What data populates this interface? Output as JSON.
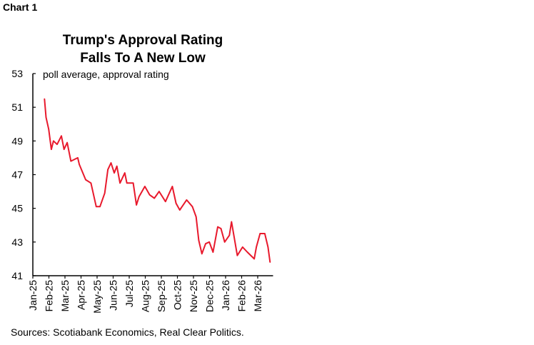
{
  "chart_data": {
    "type": "line",
    "label": "Chart 1",
    "title": [
      "Trump's Approval Rating",
      "Falls To A New Low"
    ],
    "subtitle": "poll average, approval rating",
    "source": "Sources: Scotiabank Economics,  Real Clear Politics.",
    "ylim": [
      41,
      53
    ],
    "yticks": [
      41,
      43,
      45,
      47,
      49,
      51,
      53
    ],
    "xticks": [
      "Jan-25",
      "Feb-25",
      "Mar-25",
      "Apr-25",
      "May-25",
      "Jun-25",
      "Jul-25",
      "Aug-25",
      "Sep-25",
      "Oct-25",
      "Nov-25",
      "Dec-25",
      "Jan-26",
      "Feb-26",
      "Mar-26"
    ],
    "grid": false,
    "line_color": "#e8192c",
    "series": [
      {
        "x": [
          "2025-01-23",
          "2025-01-26",
          "2025-01-31",
          "2025-02-05",
          "2025-02-09",
          "2025-02-16",
          "2025-02-24",
          "2025-03-01",
          "2025-03-07",
          "2025-03-14",
          "2025-03-27",
          "2025-03-30",
          "2025-04-11",
          "2025-04-21",
          "2025-05-01",
          "2025-05-08",
          "2025-05-17",
          "2025-05-23",
          "2025-05-29",
          "2025-06-04",
          "2025-06-09",
          "2025-06-15",
          "2025-06-24",
          "2025-06-28",
          "2025-07-10",
          "2025-07-16",
          "2025-07-21",
          "2025-08-01",
          "2025-08-10",
          "2025-08-19",
          "2025-08-28",
          "2025-09-09",
          "2025-09-22",
          "2025-09-29",
          "2025-10-06",
          "2025-10-19",
          "2025-10-30",
          "2025-11-06",
          "2025-11-11",
          "2025-11-17",
          "2025-11-24",
          "2025-12-01",
          "2025-12-08",
          "2025-12-17",
          "2025-12-23",
          "2025-12-30",
          "2026-01-08",
          "2026-01-12",
          "2026-01-23",
          "2026-02-02",
          "2026-02-11",
          "2026-02-24",
          "2026-02-28",
          "2026-03-07",
          "2026-03-16",
          "2026-03-22",
          "2026-03-26"
        ],
        "y": [
          51.5,
          50.4,
          49.7,
          48.5,
          49.0,
          48.8,
          49.3,
          48.5,
          48.9,
          47.8,
          48.0,
          47.6,
          46.7,
          46.5,
          45.1,
          45.1,
          45.9,
          47.3,
          47.7,
          47.1,
          47.5,
          46.5,
          47.1,
          46.5,
          46.5,
          45.2,
          45.7,
          46.3,
          45.8,
          45.6,
          46.0,
          45.4,
          46.3,
          45.3,
          44.9,
          45.5,
          45.1,
          44.5,
          43.1,
          42.3,
          42.9,
          43.0,
          42.4,
          43.9,
          43.8,
          43.0,
          43.4,
          44.2,
          42.2,
          42.7,
          42.4,
          42.0,
          42.7,
          43.5,
          43.5,
          42.7,
          41.8
        ]
      }
    ]
  }
}
